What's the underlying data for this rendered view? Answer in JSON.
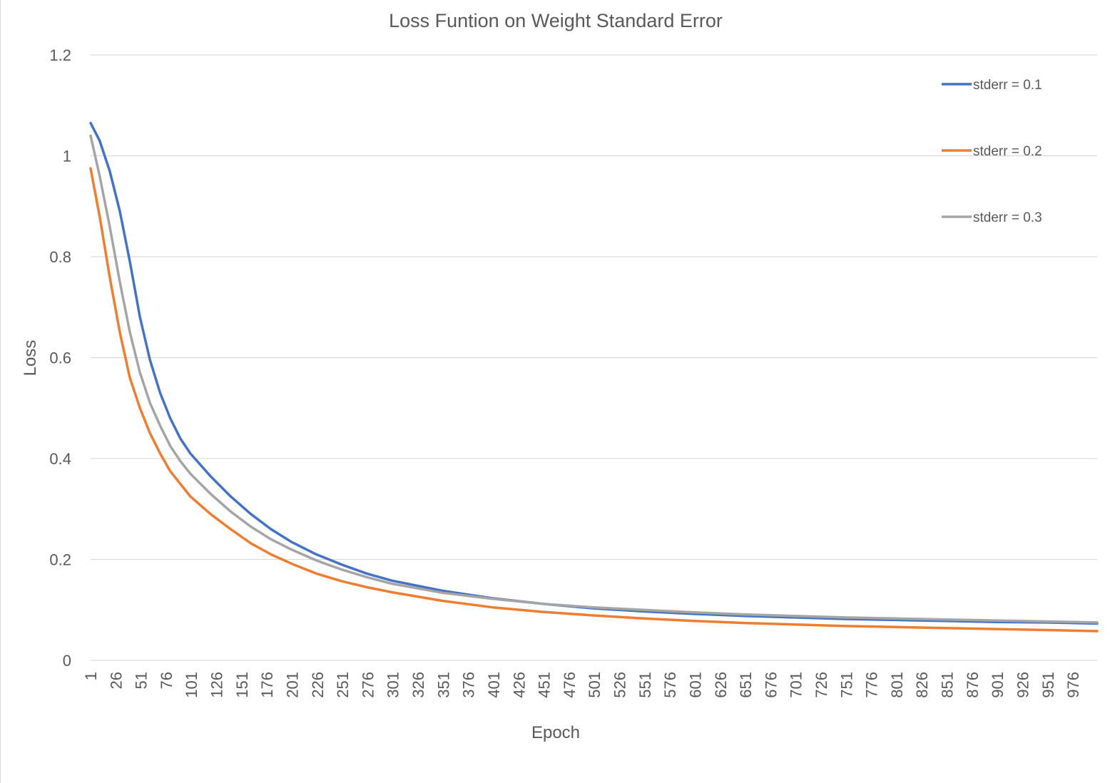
{
  "chart_data": {
    "type": "line",
    "title": "Loss Funtion on Weight Standard Error",
    "xlabel": "Epoch",
    "ylabel": "Loss",
    "ylim": [
      0,
      1.2
    ],
    "yticks": [
      "0",
      "0.2",
      "0.4",
      "0.6",
      "0.8",
      "1",
      "1.2"
    ],
    "xlim": [
      1,
      1000
    ],
    "xticks": [
      1,
      26,
      51,
      76,
      101,
      126,
      151,
      176,
      201,
      226,
      251,
      276,
      301,
      326,
      351,
      376,
      401,
      426,
      451,
      476,
      501,
      526,
      551,
      576,
      601,
      626,
      651,
      676,
      701,
      726,
      751,
      776,
      801,
      826,
      851,
      876,
      901,
      926,
      951,
      976
    ],
    "grid": true,
    "legend_position": "top-right",
    "series": [
      {
        "name": "stderr = 0.1",
        "color": "#4472c4",
        "x": [
          1,
          10,
          20,
          30,
          40,
          50,
          60,
          70,
          80,
          90,
          100,
          120,
          140,
          160,
          180,
          200,
          225,
          250,
          275,
          300,
          350,
          400,
          450,
          500,
          550,
          600,
          650,
          700,
          750,
          800,
          850,
          900,
          950,
          1000
        ],
        "y": [
          1.065,
          1.03,
          0.97,
          0.89,
          0.79,
          0.68,
          0.595,
          0.53,
          0.48,
          0.44,
          0.41,
          0.365,
          0.325,
          0.29,
          0.26,
          0.235,
          0.21,
          0.19,
          0.172,
          0.158,
          0.138,
          0.123,
          0.112,
          0.103,
          0.097,
          0.092,
          0.088,
          0.085,
          0.082,
          0.08,
          0.078,
          0.076,
          0.075,
          0.073
        ]
      },
      {
        "name": "stderr = 0.2",
        "color": "#ed7d31",
        "x": [
          1,
          10,
          20,
          30,
          40,
          50,
          60,
          70,
          80,
          90,
          100,
          120,
          140,
          160,
          180,
          200,
          225,
          250,
          275,
          300,
          350,
          400,
          450,
          500,
          550,
          600,
          650,
          700,
          750,
          800,
          850,
          900,
          950,
          1000
        ],
        "y": [
          0.975,
          0.88,
          0.76,
          0.65,
          0.56,
          0.5,
          0.45,
          0.41,
          0.375,
          0.35,
          0.325,
          0.29,
          0.26,
          0.232,
          0.21,
          0.192,
          0.172,
          0.157,
          0.145,
          0.135,
          0.118,
          0.105,
          0.096,
          0.089,
          0.083,
          0.078,
          0.074,
          0.071,
          0.068,
          0.066,
          0.064,
          0.062,
          0.06,
          0.058
        ]
      },
      {
        "name": "stderr = 0.3",
        "color": "#a5a5a5",
        "x": [
          1,
          10,
          20,
          30,
          40,
          50,
          60,
          70,
          80,
          90,
          100,
          120,
          140,
          160,
          180,
          200,
          225,
          250,
          275,
          300,
          350,
          400,
          450,
          500,
          550,
          600,
          650,
          700,
          750,
          800,
          850,
          900,
          950,
          1000
        ],
        "y": [
          1.04,
          0.96,
          0.86,
          0.75,
          0.65,
          0.57,
          0.51,
          0.465,
          0.425,
          0.395,
          0.37,
          0.33,
          0.295,
          0.265,
          0.24,
          0.22,
          0.198,
          0.18,
          0.165,
          0.152,
          0.134,
          0.122,
          0.112,
          0.105,
          0.1,
          0.095,
          0.091,
          0.088,
          0.085,
          0.083,
          0.081,
          0.079,
          0.077,
          0.075
        ]
      }
    ]
  }
}
